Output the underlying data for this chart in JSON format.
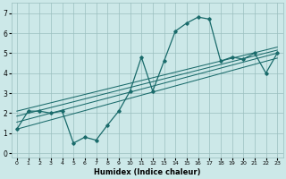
{
  "xlabel": "Humidex (Indice chaleur)",
  "bg_color": "#cce8e8",
  "grid_color": "#9bbfbf",
  "line_color": "#1a6b6b",
  "xlim": [
    -0.5,
    23.5
  ],
  "ylim": [
    -0.2,
    7.5
  ],
  "xticks": [
    0,
    1,
    2,
    3,
    4,
    5,
    6,
    7,
    8,
    9,
    10,
    11,
    12,
    13,
    14,
    15,
    16,
    17,
    18,
    19,
    20,
    21,
    22,
    23
  ],
  "yticks": [
    0,
    1,
    2,
    3,
    4,
    5,
    6,
    7
  ],
  "main_y": [
    1.2,
    2.1,
    2.1,
    2.0,
    2.1,
    0.5,
    0.8,
    0.65,
    1.4,
    2.1,
    3.1,
    4.8,
    3.1,
    4.6,
    6.1,
    6.5,
    6.8,
    6.7,
    4.6,
    4.8,
    4.7,
    5.0,
    4.0,
    5.0
  ],
  "trend_lines": [
    {
      "x0": 0,
      "y0": 1.2,
      "x1": 23,
      "y1": 4.75
    },
    {
      "x0": 0,
      "y0": 1.55,
      "x1": 23,
      "y1": 5.0
    },
    {
      "x0": 0,
      "y0": 1.85,
      "x1": 23,
      "y1": 5.15
    },
    {
      "x0": 0,
      "y0": 2.1,
      "x1": 23,
      "y1": 5.3
    }
  ]
}
